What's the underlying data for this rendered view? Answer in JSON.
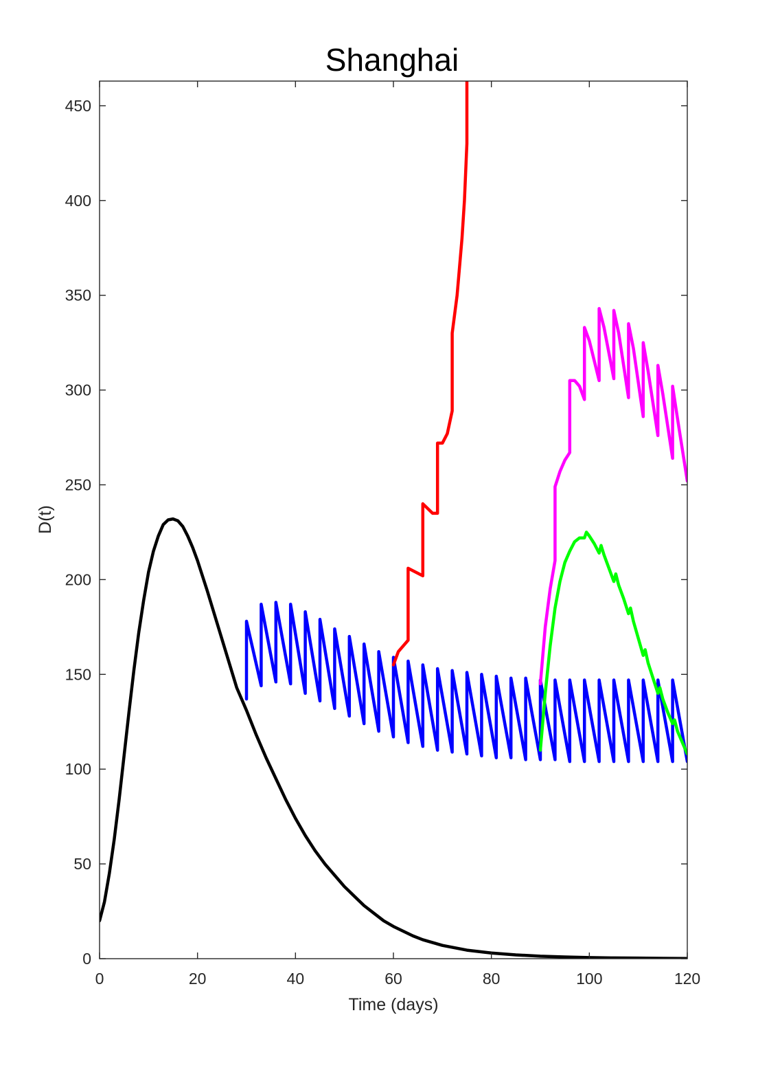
{
  "chart_data": {
    "type": "line",
    "title": "Shanghai",
    "xlabel": "Time (days)",
    "ylabel": "D(t)",
    "xlim": [
      0,
      120
    ],
    "ylim": [
      0,
      463
    ],
    "xticks": [
      "0",
      "20",
      "40",
      "60",
      "80",
      "100",
      "120"
    ],
    "yticks": [
      "0",
      "50",
      "100",
      "150",
      "200",
      "250",
      "300",
      "350",
      "400",
      "450"
    ],
    "grid": false,
    "legend": "none",
    "series": [
      {
        "color": "#000000",
        "points": [
          [
            0,
            20
          ],
          [
            1,
            30
          ],
          [
            2,
            45
          ],
          [
            3,
            63
          ],
          [
            4,
            84
          ],
          [
            5,
            107
          ],
          [
            6,
            130
          ],
          [
            7,
            152
          ],
          [
            8,
            172
          ],
          [
            9,
            189
          ],
          [
            10,
            204
          ],
          [
            11,
            215
          ],
          [
            12,
            223
          ],
          [
            13,
            229
          ],
          [
            14,
            231.5
          ],
          [
            15,
            232
          ],
          [
            16,
            231
          ],
          [
            17,
            228
          ],
          [
            18,
            223
          ],
          [
            19,
            217
          ],
          [
            20,
            210
          ],
          [
            22,
            194
          ],
          [
            24,
            177
          ],
          [
            26,
            160
          ],
          [
            28,
            143
          ],
          [
            30,
            131
          ],
          [
            32,
            118
          ],
          [
            34,
            106
          ],
          [
            36,
            95
          ],
          [
            38,
            84
          ],
          [
            40,
            74
          ],
          [
            42,
            65
          ],
          [
            44,
            57
          ],
          [
            46,
            50
          ],
          [
            48,
            44
          ],
          [
            50,
            38
          ],
          [
            52,
            33
          ],
          [
            54,
            28
          ],
          [
            56,
            24
          ],
          [
            58,
            20
          ],
          [
            60,
            17
          ],
          [
            62,
            14.5
          ],
          [
            64,
            12
          ],
          [
            66,
            10
          ],
          [
            68,
            8.5
          ],
          [
            70,
            7
          ],
          [
            72,
            6
          ],
          [
            75,
            4.5
          ],
          [
            80,
            3
          ],
          [
            85,
            2
          ],
          [
            90,
            1.3
          ],
          [
            95,
            0.9
          ],
          [
            100,
            0.6
          ],
          [
            105,
            0.4
          ],
          [
            110,
            0.3
          ],
          [
            115,
            0.2
          ],
          [
            120,
            0.1
          ]
        ]
      },
      {
        "color": "#0000ff",
        "points": [
          [
            30,
            137
          ],
          [
            30,
            178
          ],
          [
            33,
            144
          ],
          [
            33,
            187
          ],
          [
            36,
            146
          ],
          [
            36,
            188
          ],
          [
            39,
            145
          ],
          [
            39,
            187
          ],
          [
            42,
            140
          ],
          [
            42,
            183
          ],
          [
            45,
            136
          ],
          [
            45,
            179
          ],
          [
            48,
            132
          ],
          [
            48,
            174
          ],
          [
            51,
            128
          ],
          [
            51,
            170
          ],
          [
            54,
            124
          ],
          [
            54,
            166
          ],
          [
            57,
            120
          ],
          [
            57,
            162
          ],
          [
            60,
            117
          ],
          [
            60,
            159
          ],
          [
            63,
            114
          ],
          [
            63,
            157
          ],
          [
            66,
            112
          ],
          [
            66,
            155
          ],
          [
            69,
            110
          ],
          [
            69,
            153
          ],
          [
            72,
            109
          ],
          [
            72,
            152
          ],
          [
            75,
            108
          ],
          [
            75,
            151
          ],
          [
            78,
            107
          ],
          [
            78,
            150
          ],
          [
            81,
            106
          ],
          [
            81,
            149
          ],
          [
            84,
            106
          ],
          [
            84,
            148
          ],
          [
            87,
            105
          ],
          [
            87,
            148
          ],
          [
            90,
            105
          ],
          [
            90,
            147
          ],
          [
            93,
            105
          ],
          [
            93,
            147
          ],
          [
            96,
            104
          ],
          [
            96,
            147
          ],
          [
            99,
            104
          ],
          [
            99,
            147
          ],
          [
            102,
            104
          ],
          [
            102,
            147
          ],
          [
            105,
            104
          ],
          [
            105,
            147
          ],
          [
            108,
            104
          ],
          [
            108,
            147
          ],
          [
            111,
            104
          ],
          [
            111,
            147
          ],
          [
            114,
            104
          ],
          [
            114,
            147
          ],
          [
            117,
            104
          ],
          [
            117,
            147
          ],
          [
            120,
            104
          ]
        ]
      },
      {
        "color": "#ff0000",
        "points": [
          [
            60,
            155
          ],
          [
            61,
            162
          ],
          [
            63,
            168
          ],
          [
            63,
            206
          ],
          [
            66,
            202
          ],
          [
            66,
            240
          ],
          [
            68,
            235
          ],
          [
            69,
            235
          ],
          [
            69,
            272
          ],
          [
            70,
            272
          ],
          [
            71,
            277
          ],
          [
            72,
            289
          ],
          [
            72,
            330
          ],
          [
            73,
            350
          ],
          [
            74,
            380
          ],
          [
            74.5,
            400
          ],
          [
            75,
            430
          ],
          [
            75,
            463
          ]
        ]
      },
      {
        "color": "#ff00ff",
        "points": [
          [
            90,
            145
          ],
          [
            91,
            175
          ],
          [
            92,
            195
          ],
          [
            93,
            210
          ],
          [
            93,
            249
          ],
          [
            94,
            257
          ],
          [
            95,
            263
          ],
          [
            96,
            267
          ],
          [
            96,
            305
          ],
          [
            97,
            305
          ],
          [
            98,
            302
          ],
          [
            99,
            295
          ],
          [
            99,
            333
          ],
          [
            100,
            326
          ],
          [
            102,
            305
          ],
          [
            102,
            343
          ],
          [
            103,
            333
          ],
          [
            105,
            306
          ],
          [
            105,
            342
          ],
          [
            106,
            330
          ],
          [
            108,
            296
          ],
          [
            108,
            335
          ],
          [
            109,
            322
          ],
          [
            111,
            286
          ],
          [
            111,
            325
          ],
          [
            112,
            310
          ],
          [
            114,
            276
          ],
          [
            114,
            313
          ],
          [
            115,
            298
          ],
          [
            117,
            264
          ],
          [
            117,
            302
          ],
          [
            118,
            285
          ],
          [
            120,
            252
          ]
        ]
      },
      {
        "color": "#00ff00",
        "points": [
          [
            90,
            110
          ],
          [
            91,
            140
          ],
          [
            92,
            165
          ],
          [
            93,
            185
          ],
          [
            94,
            199
          ],
          [
            95,
            209
          ],
          [
            96,
            215
          ],
          [
            97,
            220
          ],
          [
            98,
            222
          ],
          [
            99,
            222
          ],
          [
            99.4,
            225
          ],
          [
            100,
            223
          ],
          [
            101,
            219
          ],
          [
            102,
            214
          ],
          [
            102.4,
            218
          ],
          [
            103,
            213
          ],
          [
            104,
            206
          ],
          [
            105,
            199
          ],
          [
            105.4,
            203
          ],
          [
            106,
            197
          ],
          [
            107,
            190
          ],
          [
            108,
            182
          ],
          [
            108.4,
            185
          ],
          [
            109,
            178
          ],
          [
            110,
            169
          ],
          [
            111,
            160
          ],
          [
            111.4,
            163
          ],
          [
            112,
            156
          ],
          [
            113,
            148
          ],
          [
            114,
            140
          ],
          [
            114.4,
            143
          ],
          [
            115,
            137
          ],
          [
            116,
            130
          ],
          [
            117,
            124
          ],
          [
            117.4,
            126
          ],
          [
            118,
            120
          ],
          [
            119,
            114
          ],
          [
            120,
            108
          ]
        ]
      }
    ]
  }
}
